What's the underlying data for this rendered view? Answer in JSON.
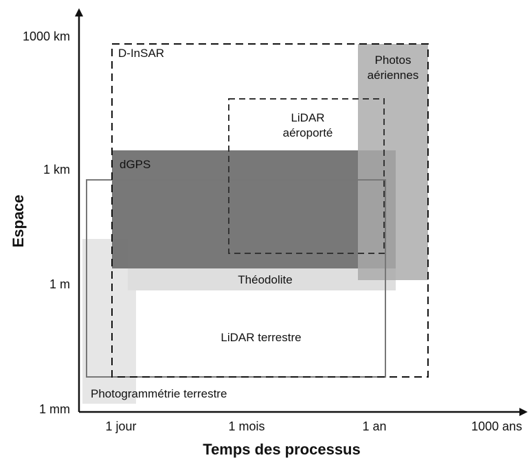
{
  "axes": {
    "x_title": "Temps des processus",
    "y_title": "Espace",
    "x_ticks": [
      "1 jour",
      "1 mois",
      "1 an",
      "1000 ans"
    ],
    "y_ticks": [
      "1000 km",
      "1 km",
      "1 m",
      "1 mm"
    ]
  },
  "regions": [
    {
      "key": "photogrammetrie",
      "label": "Photogrammétrie terrestre",
      "style": "fill",
      "color": "#e6e6e6"
    },
    {
      "key": "theodolite",
      "label": "Théodolite",
      "style": "fill",
      "color": "#dedede"
    },
    {
      "key": "dgps",
      "label": "dGPS",
      "style": "fill",
      "color": "#6e6e6e"
    },
    {
      "key": "photos",
      "label": "Photos aériennes",
      "label_lines": [
        "Photos",
        "aériennes"
      ],
      "style": "fill",
      "color": "#b4b4b4"
    },
    {
      "key": "lidar_terrestre",
      "label": "LiDAR terrestre",
      "style": "solid-outline",
      "color": "#777777"
    },
    {
      "key": "dinsar",
      "label": "D-InSAR",
      "style": "dashed-outline",
      "color": "#111111"
    },
    {
      "key": "lidar_aeroporte",
      "label": "LiDAR aéroporté",
      "label_lines": [
        "LiDAR",
        "aéroporté"
      ],
      "style": "dashed-outline",
      "color": "#333333"
    }
  ]
}
